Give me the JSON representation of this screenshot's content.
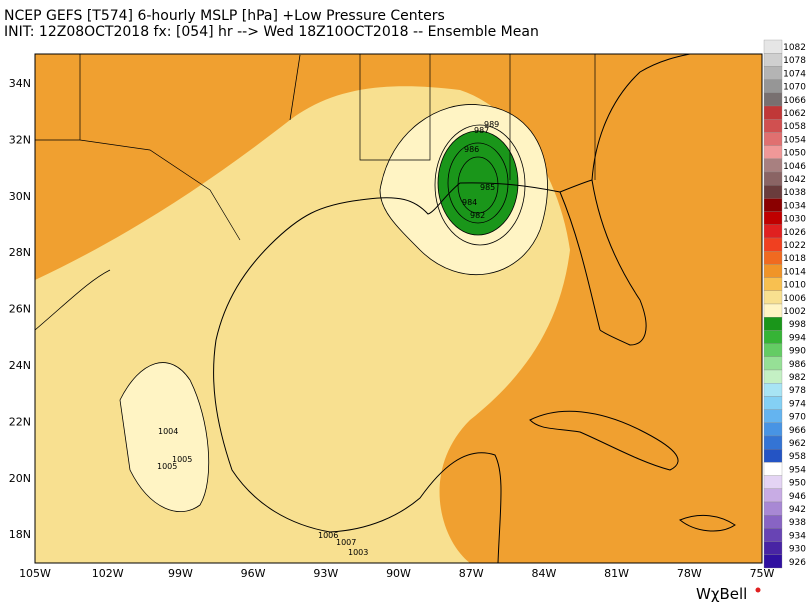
{
  "header": {
    "title": "NCEP GEFS [T574] 6-hourly MSLP [hPa]   +Low Pressure Centers",
    "subtitle": "INIT: 12Z08OCT2018 fx: [054] hr --> Wed 18Z10OCT2018 -- Ensemble Mean"
  },
  "map": {
    "lat_labels": [
      "34N",
      "32N",
      "30N",
      "28N",
      "26N",
      "24N",
      "22N",
      "20N",
      "18N"
    ],
    "lon_labels": [
      "105W",
      "102W",
      "99W",
      "96W",
      "93W",
      "90W",
      "87W",
      "84W",
      "81W",
      "78W",
      "75W"
    ],
    "low_labels": [
      "1004",
      "1005",
      "1005",
      "1006",
      "1007",
      "1003",
      "989",
      "987",
      "986",
      "984",
      "985",
      "982"
    ]
  },
  "colorbar": {
    "items": [
      {
        "label": "1082",
        "color": "#e6e6e6"
      },
      {
        "label": "1078",
        "color": "#cfcfcf"
      },
      {
        "label": "1074",
        "color": "#b4b4b4"
      },
      {
        "label": "1070",
        "color": "#969696"
      },
      {
        "label": "1066",
        "color": "#787070"
      },
      {
        "label": "1062",
        "color": "#c03838"
      },
      {
        "label": "1058",
        "color": "#d05050"
      },
      {
        "label": "1054",
        "color": "#e07070"
      },
      {
        "label": "1050",
        "color": "#f09898"
      },
      {
        "label": "1046",
        "color": "#a88080"
      },
      {
        "label": "1042",
        "color": "#8a6464"
      },
      {
        "label": "1038",
        "color": "#6a3c3c"
      },
      {
        "label": "1034",
        "color": "#8a0000"
      },
      {
        "label": "1030",
        "color": "#c00000"
      },
      {
        "label": "1026",
        "color": "#e02020"
      },
      {
        "label": "1022",
        "color": "#f04020"
      },
      {
        "label": "1018",
        "color": "#f06a20"
      },
      {
        "label": "1014",
        "color": "#f09428"
      },
      {
        "label": "1010",
        "color": "#f8c050"
      },
      {
        "label": "1006",
        "color": "#f8e090"
      },
      {
        "label": "1002",
        "color": "#fff4c4"
      },
      {
        "label": "998",
        "color": "#1a961a"
      },
      {
        "label": "994",
        "color": "#36b436"
      },
      {
        "label": "990",
        "color": "#64cc64"
      },
      {
        "label": "986",
        "color": "#96e096"
      },
      {
        "label": "982",
        "color": "#c4f0c4"
      },
      {
        "label": "978",
        "color": "#a8e4f4"
      },
      {
        "label": "974",
        "color": "#84d0f4"
      },
      {
        "label": "970",
        "color": "#64b4f0"
      },
      {
        "label": "966",
        "color": "#4894e4"
      },
      {
        "label": "962",
        "color": "#3474d4"
      },
      {
        "label": "958",
        "color": "#2454c4"
      },
      {
        "label": "954",
        "color": "#ffffff"
      },
      {
        "label": "950",
        "color": "#e4d4f4"
      },
      {
        "label": "946",
        "color": "#c8ace4"
      },
      {
        "label": "942",
        "color": "#a888d4"
      },
      {
        "label": "938",
        "color": "#8864c4"
      },
      {
        "label": "934",
        "color": "#6844b4"
      },
      {
        "label": "930",
        "color": "#4824a4"
      },
      {
        "label": "926",
        "color": "#3010a0"
      }
    ]
  },
  "logo": "WχBell"
}
